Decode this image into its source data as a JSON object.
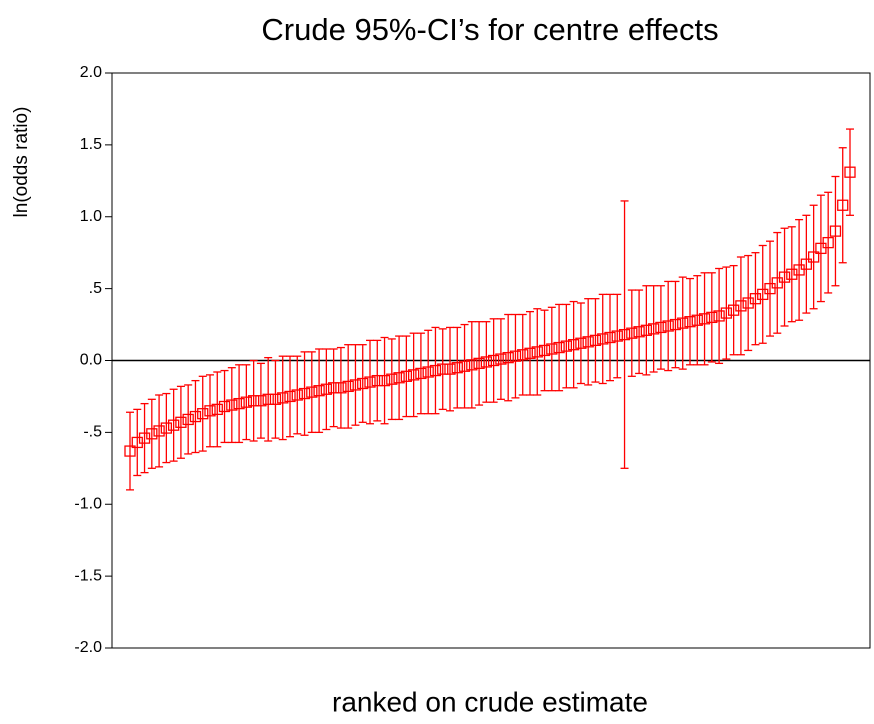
{
  "chart_data": {
    "type": "errorbar",
    "title": "Crude 95%-CI’s for  centre effects",
    "xlabel": "ranked on crude estimate",
    "ylabel": "ln(odds ratio)",
    "categories": [
      null,
      null,
      null,
      null,
      null,
      null,
      null,
      null,
      null,
      null,
      null,
      null,
      null,
      null,
      null,
      null,
      null,
      null,
      null,
      null,
      null,
      null,
      null,
      null,
      null,
      null,
      null,
      null,
      null,
      null,
      null,
      null,
      null,
      null,
      null,
      null,
      null,
      null,
      null,
      null,
      null,
      null,
      null,
      null,
      null,
      null,
      null,
      null,
      null,
      null,
      null,
      null,
      null,
      null,
      null,
      null,
      null,
      null,
      null,
      null,
      null,
      null,
      null,
      null,
      null,
      null,
      null,
      null,
      null,
      null,
      null,
      null,
      null,
      null,
      null,
      null,
      null,
      null,
      null,
      null,
      null,
      null,
      null,
      null,
      null,
      null,
      null,
      null,
      null,
      null,
      null,
      null,
      null,
      null,
      null,
      null,
      null,
      null,
      null,
      null
    ],
    "color": "#ff0000",
    "values": [
      -0.63,
      -0.57,
      -0.54,
      -0.51,
      -0.49,
      -0.47,
      -0.45,
      -0.43,
      -0.41,
      -0.39,
      -0.37,
      -0.35,
      -0.34,
      -0.32,
      -0.31,
      -0.3,
      -0.29,
      -0.28,
      -0.28,
      -0.27,
      -0.27,
      -0.26,
      -0.25,
      -0.24,
      -0.23,
      -0.22,
      -0.21,
      -0.2,
      -0.19,
      -0.19,
      -0.18,
      -0.17,
      -0.16,
      -0.15,
      -0.14,
      -0.14,
      -0.13,
      -0.12,
      -0.11,
      -0.1,
      -0.09,
      -0.08,
      -0.07,
      -0.06,
      -0.06,
      -0.05,
      -0.04,
      -0.03,
      -0.02,
      -0.01,
      0.0,
      0.01,
      0.02,
      0.03,
      0.04,
      0.05,
      0.06,
      0.07,
      0.08,
      0.09,
      0.1,
      0.11,
      0.12,
      0.13,
      0.14,
      0.15,
      0.16,
      0.17,
      0.18,
      0.19,
      0.2,
      0.21,
      0.22,
      0.23,
      0.24,
      0.25,
      0.26,
      0.27,
      0.28,
      0.29,
      0.3,
      0.31,
      0.33,
      0.35,
      0.38,
      0.4,
      0.43,
      0.46,
      0.5,
      0.54,
      0.58,
      0.6,
      0.63,
      0.67,
      0.72,
      0.78,
      0.82,
      0.9,
      1.08,
      1.31
    ],
    "errors": [
      0.27,
      0.23,
      0.24,
      0.24,
      0.25,
      0.24,
      0.25,
      0.25,
      0.24,
      0.25,
      0.26,
      0.25,
      0.26,
      0.25,
      0.26,
      0.27,
      0.26,
      0.28,
      0.26,
      0.29,
      0.27,
      0.29,
      0.28,
      0.27,
      0.29,
      0.28,
      0.29,
      0.28,
      0.27,
      0.28,
      0.29,
      0.28,
      0.27,
      0.29,
      0.28,
      0.3,
      0.28,
      0.29,
      0.28,
      0.29,
      0.28,
      0.29,
      0.3,
      0.28,
      0.29,
      0.28,
      0.29,
      0.3,
      0.29,
      0.28,
      0.29,
      0.28,
      0.3,
      0.29,
      0.28,
      0.29,
      0.3,
      0.28,
      0.29,
      0.3,
      0.29,
      0.3,
      0.28,
      0.3,
      0.29,
      0.31,
      0.3,
      0.29,
      0.93,
      0.3,
      0.29,
      0.31,
      0.3,
      0.29,
      0.31,
      0.3,
      0.32,
      0.3,
      0.31,
      0.32,
      0.31,
      0.33,
      0.32,
      0.31,
      0.34,
      0.33,
      0.32,
      0.34,
      0.33,
      0.35,
      0.34,
      0.33,
      0.35,
      0.34,
      0.36,
      0.37,
      0.35,
      0.38,
      0.4,
      0.3
    ],
    "ylim": [
      -2,
      2
    ],
    "yticks": [
      {
        "value": -2,
        "label": "-2.0"
      },
      {
        "value": -1.5,
        "label": "-1.5"
      },
      {
        "value": -1,
        "label": "-1.0"
      },
      {
        "value": -0.5,
        "label": "-.5"
      },
      {
        "value": 0,
        "label": "0.0"
      },
      {
        "value": 0.5,
        "label": ".5"
      },
      {
        "value": 1,
        "label": "1.0"
      },
      {
        "value": 1.5,
        "label": "1.5"
      },
      {
        "value": 2,
        "label": "2.0"
      }
    ],
    "grid": false
  }
}
